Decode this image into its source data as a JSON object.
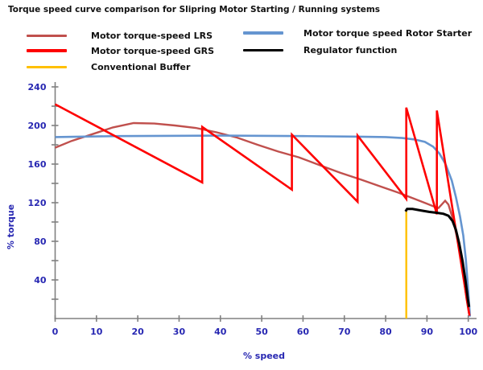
{
  "title": "Torque speed curve comparison for  Slipring Motor Starting / Running systems",
  "colors": {
    "axis": "#808080",
    "tick_text": "#2727B2",
    "title_text": "#111111",
    "legend_text": "#111111"
  },
  "chart_data": {
    "type": "line",
    "title": "Torque speed curve comparison for  Slipring Motor Starting / Running systems",
    "xlabel": "% speed",
    "ylabel": "% torque",
    "xlim": [
      0,
      100
    ],
    "ylim": [
      0,
      240
    ],
    "x_ticks": [
      0,
      10,
      20,
      30,
      40,
      50,
      60,
      70,
      80,
      90,
      100
    ],
    "y_ticks_minor_step": 20,
    "y_tick_labels": [
      40,
      80,
      120,
      160,
      200,
      240
    ],
    "grid": "off",
    "legend_position": "top",
    "series": [
      {
        "name": "Motor torque-speed LRS",
        "color": "#C0504D",
        "points": [
          [
            0,
            177
          ],
          [
            4,
            184
          ],
          [
            9,
            191
          ],
          [
            14,
            198
          ],
          [
            19,
            202.5
          ],
          [
            24,
            202
          ],
          [
            29,
            200
          ],
          [
            34,
            197.5
          ],
          [
            39,
            193
          ],
          [
            44,
            187.5
          ],
          [
            49,
            180
          ],
          [
            54,
            173
          ],
          [
            59,
            167
          ],
          [
            64,
            159
          ],
          [
            69,
            151
          ],
          [
            74,
            144
          ],
          [
            79,
            136.5
          ],
          [
            83,
            130.5
          ],
          [
            87,
            124
          ],
          [
            90,
            119
          ],
          [
            92,
            115.5
          ],
          [
            92.8,
            114.5
          ],
          [
            94.4,
            122
          ],
          [
            95.2,
            118
          ],
          [
            96.2,
            104
          ],
          [
            97.4,
            82
          ],
          [
            98.6,
            52
          ],
          [
            99.6,
            20
          ],
          [
            100.2,
            5
          ]
        ]
      },
      {
        "name": "Motor torque speed Rotor Starter",
        "color": "#6595D0",
        "points": [
          [
            0,
            188
          ],
          [
            15,
            189
          ],
          [
            40,
            189.5
          ],
          [
            60,
            189
          ],
          [
            72,
            188.5
          ],
          [
            80,
            188
          ],
          [
            84,
            187
          ],
          [
            87,
            185.5
          ],
          [
            89.5,
            183
          ],
          [
            91.5,
            178
          ],
          [
            93,
            171
          ],
          [
            94.5,
            160
          ],
          [
            96,
            143
          ],
          [
            97,
            126
          ],
          [
            98,
            106
          ],
          [
            98.8,
            86
          ],
          [
            99.4,
            62
          ],
          [
            100,
            28
          ],
          [
            100.4,
            2
          ]
        ]
      },
      {
        "name": "Motor torque-speed GRS",
        "color": "#FE0000",
        "points": [
          [
            0,
            222
          ],
          [
            35.6,
            141
          ],
          [
            35.6,
            198.5
          ],
          [
            57.3,
            133.5
          ],
          [
            57.3,
            190.5
          ],
          [
            73.2,
            121
          ],
          [
            73.2,
            189.5
          ],
          [
            85,
            124
          ],
          [
            85,
            218.5
          ],
          [
            92.4,
            108
          ],
          [
            92.4,
            215.5
          ],
          [
            100.3,
            3
          ]
        ]
      },
      {
        "name": "Conventional Buffer",
        "color": "#FFC000",
        "points": [
          [
            85,
            0
          ],
          [
            85,
            111
          ]
        ]
      },
      {
        "name": "Regulator function",
        "color": "#000000",
        "points": [
          [
            84.8,
            111
          ],
          [
            85.2,
            113.5
          ],
          [
            86.5,
            113.5
          ],
          [
            88.5,
            112
          ],
          [
            90.5,
            110.5
          ],
          [
            92.5,
            109.5
          ],
          [
            94,
            108.5
          ],
          [
            95.2,
            106.5
          ],
          [
            96.2,
            101
          ],
          [
            97,
            92
          ],
          [
            97.8,
            78
          ],
          [
            98.6,
            60
          ],
          [
            99.3,
            40
          ],
          [
            99.9,
            20
          ],
          [
            100.2,
            12
          ]
        ]
      }
    ]
  },
  "legend": {
    "items": [
      {
        "label": "Motor torque-speed LRS",
        "color": "#C0504D"
      },
      {
        "label": "Motor torque-speed GRS",
        "color": "#FE0000"
      },
      {
        "label": "Conventional Buffer",
        "color": "#FFC000"
      },
      {
        "label": "Motor torque speed Rotor Starter",
        "color": "#6595D0"
      },
      {
        "label": "Regulator function",
        "color": "#000000"
      }
    ]
  }
}
